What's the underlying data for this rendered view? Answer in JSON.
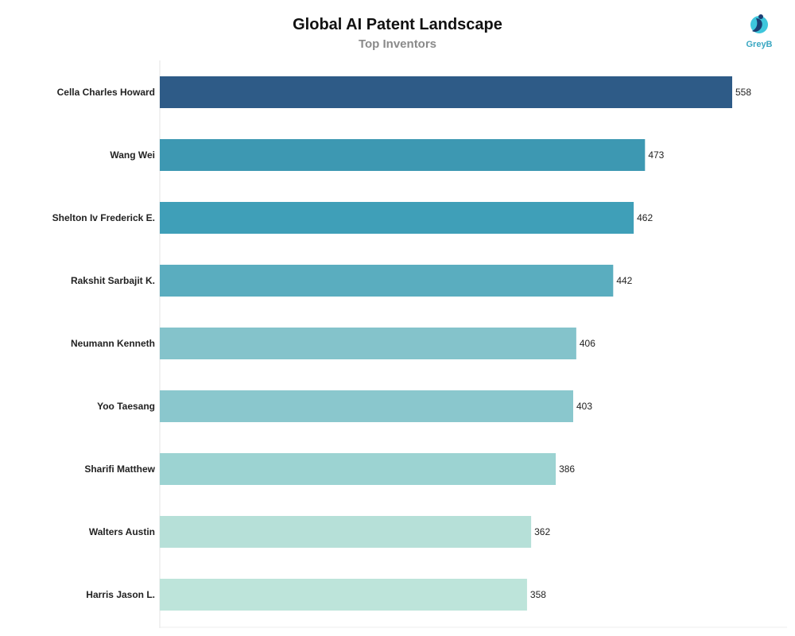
{
  "chart_data": {
    "type": "bar",
    "orientation": "horizontal",
    "title": "Global AI Patent Landscape",
    "subtitle": "Top Inventors",
    "xlabel": "",
    "ylabel": "",
    "xlim": [
      0,
      558
    ],
    "grid": false,
    "categories": [
      "Cella Charles Howard",
      "Wang Wei",
      "Shelton Iv Frederick E.",
      "Rakshit Sarbajit K.",
      "Neumann Kenneth",
      "Yoo Taesang",
      "Sharifi Matthew",
      "Walters Austin",
      "Harris Jason L."
    ],
    "values": [
      558,
      473,
      462,
      442,
      406,
      403,
      386,
      362,
      358
    ],
    "colors": [
      "#2e5b87",
      "#3d98b2",
      "#3f9fb8",
      "#5aadbf",
      "#84c3cb",
      "#8ac7cd",
      "#9cd3d2",
      "#b6e0d8",
      "#bde4da"
    ]
  },
  "brand": {
    "name": "GreyB",
    "logo_icon": "greyb-logo-icon",
    "color": "#3aa7c2"
  }
}
